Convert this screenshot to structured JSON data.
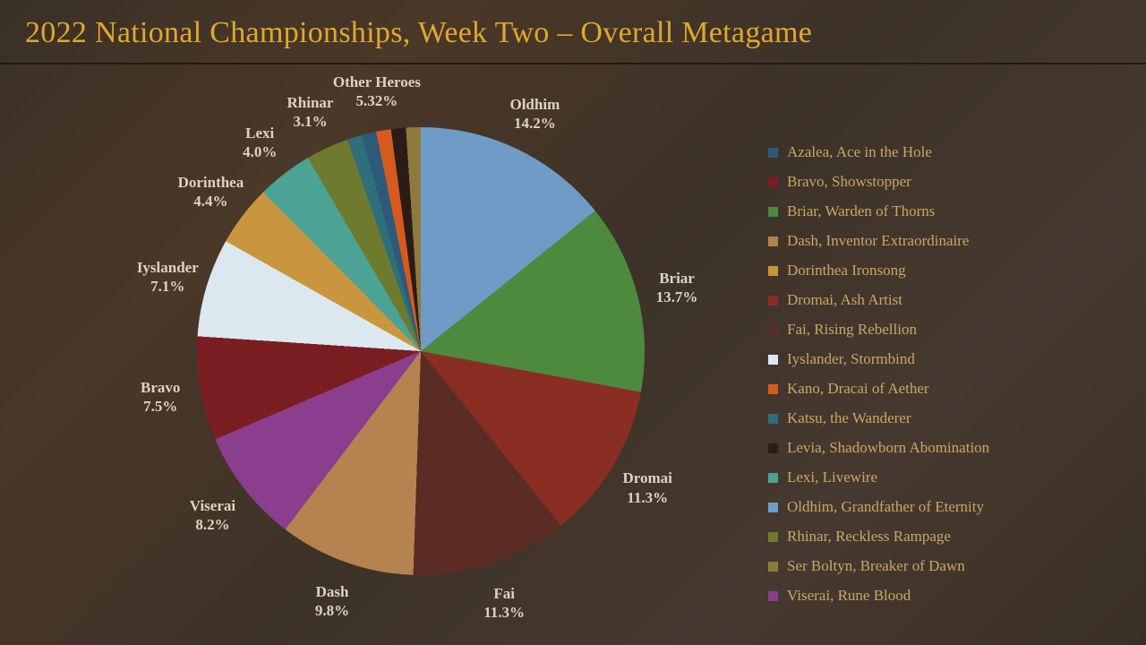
{
  "title": "2022 National Championships, Week Two – Overall Metagame",
  "chart": {
    "type": "pie",
    "label_color": "#ded3c0",
    "label_fontsize": 17,
    "start_angle_deg": -90,
    "direction": "clockwise",
    "slices": [
      {
        "name": "Oldhim",
        "pct": 14.2,
        "display_pct": "14.2%",
        "color": "#6f9cc7"
      },
      {
        "name": "Briar",
        "pct": 13.7,
        "display_pct": "13.7%",
        "color": "#4d8a3e"
      },
      {
        "name": "Dromai",
        "pct": 11.3,
        "display_pct": "11.3%",
        "color": "#8a2e23"
      },
      {
        "name": "Fai",
        "pct": 11.3,
        "display_pct": "11.3%",
        "color": "#5a2c23"
      },
      {
        "name": "Dash",
        "pct": 9.8,
        "display_pct": "9.8%",
        "color": "#b5834f"
      },
      {
        "name": "Viserai",
        "pct": 8.2,
        "display_pct": "8.2%",
        "color": "#8b3d8e"
      },
      {
        "name": "Bravo",
        "pct": 7.5,
        "display_pct": "7.5%",
        "color": "#7a1e22"
      },
      {
        "name": "Iyslander",
        "pct": 7.1,
        "display_pct": "7.1%",
        "color": "#dce8ef"
      },
      {
        "name": "Dorinthea",
        "pct": 4.4,
        "display_pct": "4.4%",
        "color": "#c9963f"
      },
      {
        "name": "Lexi",
        "pct": 4.0,
        "display_pct": "4.0%",
        "color": "#4aa394"
      },
      {
        "name": "Rhinar",
        "pct": 3.1,
        "display_pct": "3.1%",
        "color": "#6e7a2e"
      },
      {
        "name": "Other Heroes",
        "pct": 5.32,
        "display_pct": "5.32%",
        "color": null,
        "sub": [
          {
            "color": "#2f6f7a"
          },
          {
            "color": "#2e5a7a"
          },
          {
            "color": "#d65a1e"
          },
          {
            "color": "#2a1d17"
          },
          {
            "color": "#8f7a3e"
          }
        ]
      }
    ]
  },
  "legend": {
    "text_color": "#c9a862",
    "fontsize": 17,
    "items": [
      {
        "label": "Azalea, Ace in the Hole",
        "color": "#2e5a7a"
      },
      {
        "label": "Bravo, Showstopper",
        "color": "#7a1e22"
      },
      {
        "label": "Briar, Warden of Thorns",
        "color": "#4d8a3e"
      },
      {
        "label": "Dash, Inventor Extraordinaire",
        "color": "#b5834f"
      },
      {
        "label": "Dorinthea Ironsong",
        "color": "#c9963f"
      },
      {
        "label": "Dromai, Ash Artist",
        "color": "#8a2e23"
      },
      {
        "label": "Fai, Rising Rebellion",
        "color": "#5a2c23"
      },
      {
        "label": "Iyslander, Stormbind",
        "color": "#dce8ef"
      },
      {
        "label": "Kano, Dracai of Aether",
        "color": "#d65a1e"
      },
      {
        "label": "Katsu, the Wanderer",
        "color": "#2f6f7a"
      },
      {
        "label": "Levia, Shadowborn Abomination",
        "color": "#2a1d17"
      },
      {
        "label": "Lexi, Livewire",
        "color": "#4aa394"
      },
      {
        "label": "Oldhim, Grandfather of Eternity",
        "color": "#6f9cc7"
      },
      {
        "label": "Rhinar, Reckless Rampage",
        "color": "#6e7a2e"
      },
      {
        "label": "Ser Boltyn, Breaker of Dawn",
        "color": "#8f7a3e"
      },
      {
        "label": "Viserai, Rune Blood",
        "color": "#8b3d8e"
      }
    ]
  }
}
